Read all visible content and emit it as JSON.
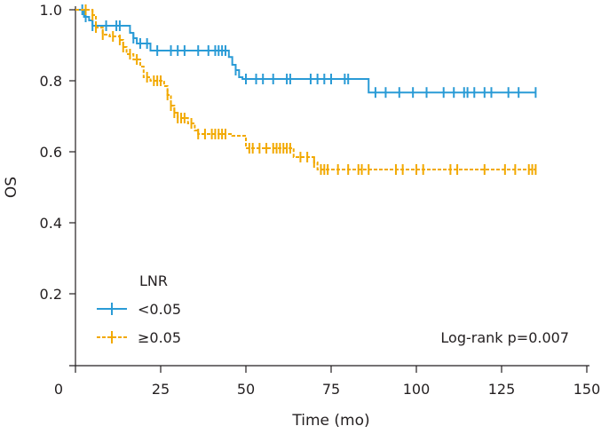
{
  "chart_data": {
    "type": "line",
    "subtype": "kaplan-meier",
    "title": "",
    "xlabel": "Time (mo)",
    "ylabel": "OS",
    "xlim": [
      0,
      150
    ],
    "ylim": [
      0.0,
      1.0
    ],
    "x_ticks": [
      "0",
      "25",
      "50",
      "75",
      "100",
      "125",
      "150"
    ],
    "y_ticks": [
      "1.0",
      "0.8",
      "0.6",
      "0.4",
      "0.2"
    ],
    "grid": false,
    "legend": {
      "title": "LNR",
      "position": "bottom-left"
    },
    "annotation": "Log-rank p=0.007",
    "series": [
      {
        "name": "<0.05",
        "color": "#2a9bd6",
        "line_style": "solid",
        "steps": [
          [
            0,
            1.0
          ],
          [
            2.5,
            0.98
          ],
          [
            4,
            0.97
          ],
          [
            5,
            0.955
          ],
          [
            16,
            0.935
          ],
          [
            17,
            0.92
          ],
          [
            18,
            0.905
          ],
          [
            22,
            0.885
          ],
          [
            45,
            0.867
          ],
          [
            46,
            0.845
          ],
          [
            47,
            0.83
          ],
          [
            48,
            0.81
          ],
          [
            49,
            0.805
          ],
          [
            86,
            0.767
          ],
          [
            135,
            0.767
          ]
        ],
        "censored": [
          2,
          3,
          5,
          9,
          12,
          13,
          17,
          19,
          21,
          24,
          28,
          30,
          32,
          36,
          39,
          41,
          42,
          43,
          44,
          47,
          50,
          53,
          55,
          58,
          62,
          63,
          69,
          71,
          73,
          75,
          79,
          80,
          88,
          91,
          95,
          99,
          103,
          108,
          111,
          114,
          115,
          117,
          120,
          122,
          127,
          130,
          135
        ]
      },
      {
        "name": "≥0.05",
        "color": "#f2a900",
        "line_style": "dashed",
        "steps": [
          [
            0,
            1.0
          ],
          [
            5,
            0.985
          ],
          [
            6,
            0.95
          ],
          [
            8,
            0.93
          ],
          [
            10,
            0.925
          ],
          [
            13,
            0.915
          ],
          [
            14,
            0.895
          ],
          [
            15,
            0.875
          ],
          [
            17,
            0.86
          ],
          [
            19,
            0.84
          ],
          [
            20,
            0.81
          ],
          [
            22,
            0.8
          ],
          [
            26,
            0.785
          ],
          [
            27,
            0.76
          ],
          [
            28,
            0.73
          ],
          [
            29,
            0.71
          ],
          [
            30,
            0.695
          ],
          [
            33,
            0.68
          ],
          [
            35,
            0.66
          ],
          [
            36,
            0.65
          ],
          [
            46,
            0.645
          ],
          [
            50,
            0.61
          ],
          [
            64,
            0.585
          ],
          [
            70,
            0.57
          ],
          [
            71,
            0.55
          ],
          [
            135,
            0.55
          ]
        ],
        "censored": [
          3,
          5,
          6,
          8,
          11,
          13,
          14,
          16,
          18,
          21,
          23,
          24,
          25,
          27,
          28,
          29,
          30,
          31,
          32,
          34,
          36,
          38,
          40,
          41,
          42,
          43,
          44,
          51,
          52,
          54,
          56,
          58,
          59,
          60,
          61,
          62,
          63,
          66,
          68,
          70,
          72,
          73,
          74,
          77,
          80,
          83,
          84,
          86,
          94,
          96,
          100,
          102,
          110,
          112,
          120,
          126,
          129,
          133,
          134,
          135
        ]
      }
    ]
  }
}
